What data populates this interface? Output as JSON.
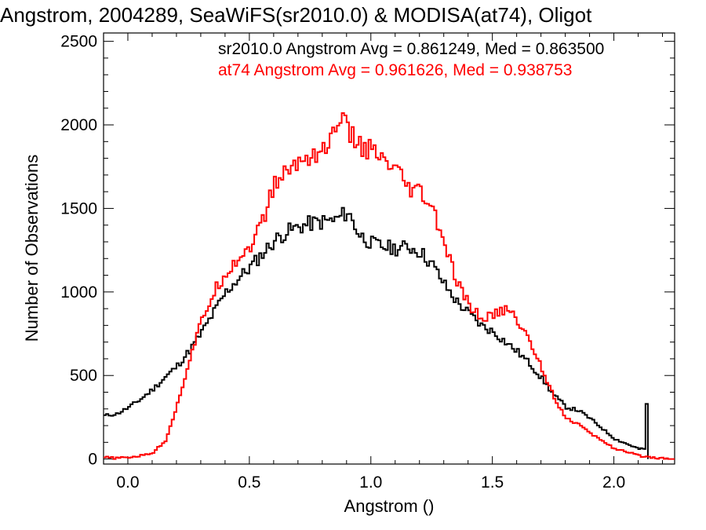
{
  "chart_data": {
    "type": "line",
    "title": "Angstrom, 2004289, SeaWiFS(sr2010.0) & MODISA(at74), Oligot",
    "xlabel": "Angstrom ()",
    "ylabel": "Number of Observations",
    "xlim": [
      -0.1,
      2.25
    ],
    "ylim": [
      -30,
      2550
    ],
    "x_ticks": [
      0.0,
      0.5,
      1.0,
      1.5,
      2.0
    ],
    "x_tick_labels": [
      "0.0",
      "0.5",
      "1.0",
      "1.5",
      "2.0"
    ],
    "y_ticks": [
      0,
      500,
      1000,
      1500,
      2000,
      2500
    ],
    "y_tick_labels": [
      "0",
      "500",
      "1000",
      "1500",
      "2000",
      "2500"
    ],
    "grid": false,
    "stats_lines": [
      {
        "text": "sr2010.0 Angstrom Avg = 0.861249, Med = 0.863500",
        "color": "#000000"
      },
      {
        "text": "at74 Angstrom Avg = 0.961626, Med = 0.938753",
        "color": "#ff0000"
      }
    ],
    "series": [
      {
        "color": "#000000",
        "x": [
          -0.1,
          -0.05,
          0.0,
          0.05,
          0.1,
          0.15,
          0.2,
          0.25,
          0.3,
          0.35,
          0.4,
          0.45,
          0.5,
          0.55,
          0.6,
          0.65,
          0.7,
          0.75,
          0.8,
          0.85,
          0.9,
          0.95,
          1.0,
          1.05,
          1.1,
          1.15,
          1.2,
          1.25,
          1.3,
          1.35,
          1.4,
          1.45,
          1.5,
          1.55,
          1.6,
          1.65,
          1.7,
          1.75,
          1.8,
          1.85,
          1.9,
          1.95,
          2.0,
          2.05,
          2.1,
          2.125,
          2.13,
          2.14
        ],
        "y": [
          260,
          270,
          310,
          360,
          420,
          490,
          560,
          650,
          760,
          880,
          1000,
          1080,
          1150,
          1230,
          1310,
          1360,
          1390,
          1410,
          1420,
          1430,
          1480,
          1340,
          1290,
          1270,
          1260,
          1270,
          1240,
          1160,
          1040,
          940,
          870,
          800,
          760,
          700,
          640,
          570,
          480,
          380,
          310,
          290,
          240,
          180,
          120,
          90,
          60,
          60,
          330,
          0
        ]
      },
      {
        "color": "#ff0000",
        "x": [
          -0.1,
          -0.05,
          0.0,
          0.05,
          0.1,
          0.15,
          0.2,
          0.25,
          0.3,
          0.35,
          0.4,
          0.45,
          0.5,
          0.55,
          0.6,
          0.65,
          0.7,
          0.75,
          0.8,
          0.85,
          0.87,
          0.9,
          0.95,
          1.0,
          1.05,
          1.1,
          1.15,
          1.2,
          1.25,
          1.3,
          1.35,
          1.4,
          1.45,
          1.5,
          1.55,
          1.6,
          1.65,
          1.7,
          1.75,
          1.8,
          1.85,
          1.9,
          1.95,
          2.0,
          2.05,
          2.1,
          2.15,
          2.25
        ],
        "y": [
          10,
          5,
          10,
          20,
          40,
          110,
          330,
          600,
          830,
          1000,
          1120,
          1200,
          1280,
          1420,
          1650,
          1720,
          1780,
          1820,
          1850,
          1950,
          2080,
          1950,
          1880,
          1840,
          1770,
          1720,
          1610,
          1590,
          1490,
          1280,
          1050,
          920,
          840,
          860,
          900,
          830,
          700,
          540,
          370,
          240,
          210,
          150,
          110,
          60,
          40,
          20,
          10,
          0
        ]
      }
    ]
  }
}
